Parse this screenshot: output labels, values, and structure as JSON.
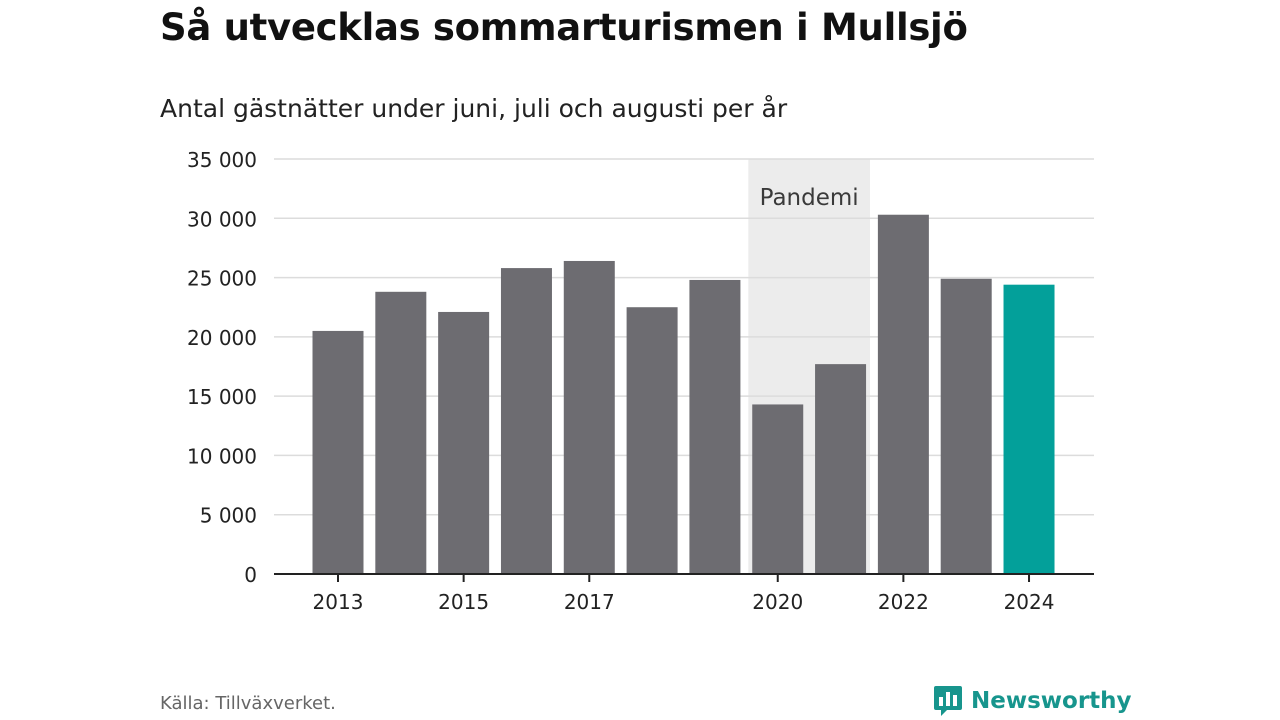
{
  "header": {
    "title": "Så utvecklas sommarturismen i Mullsjö",
    "subtitle": "Antal gästnätter under juni, juli och augusti per år"
  },
  "footer": {
    "source": "Källa: Tillväxverket.",
    "brand": "Newsworthy"
  },
  "colors": {
    "bar": "#6d6c71",
    "highlight": "#03a09a",
    "pandemic_band": "#ececec",
    "grid": "#dcdcdc",
    "axis": "#222222",
    "brand": "#17958d"
  },
  "chart_data": {
    "type": "bar",
    "title": "Så utvecklas sommarturismen i Mullsjö",
    "subtitle": "Antal gästnätter under juni, juli och augusti per år",
    "categories": [
      "2013",
      "2014",
      "2015",
      "2016",
      "2017",
      "2018",
      "2019",
      "2020",
      "2021",
      "2022",
      "2023",
      "2024"
    ],
    "values": [
      20500,
      23800,
      22100,
      25800,
      26400,
      22500,
      24800,
      14300,
      17700,
      30300,
      24900,
      24400
    ],
    "highlight_category": "2024",
    "ylim": [
      0,
      35000
    ],
    "yticks": [
      0,
      5000,
      10000,
      15000,
      20000,
      25000,
      30000,
      35000
    ],
    "ytick_labels": [
      "0",
      "5 000",
      "10 000",
      "15 000",
      "20 000",
      "25 000",
      "30 000",
      "35 000"
    ],
    "xtick_labels": [
      "2013",
      "2015",
      "2017",
      "2020",
      "2022",
      "2024"
    ],
    "grid": true,
    "legend": "none",
    "annotations": [
      {
        "label": "Pandemi",
        "from": "2020",
        "to": "2021"
      }
    ]
  }
}
